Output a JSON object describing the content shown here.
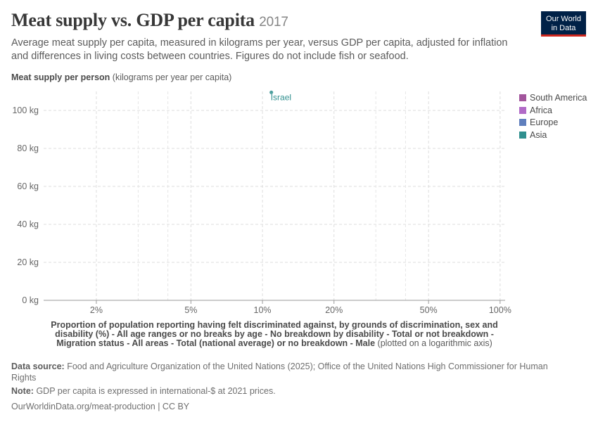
{
  "header": {
    "title": "Meat supply vs. GDP per capita",
    "year": "2017",
    "subtitle": "Average meat supply per capita, measured in kilograms per year, versus GDP per capita, adjusted for inflation and differences in living costs between countries. Figures do not include fish or seafood."
  },
  "logo": {
    "line1": "Our World",
    "line2": "in Data",
    "bg": "#002147",
    "accent": "#ce261e"
  },
  "chart_data": {
    "type": "scatter",
    "title": "Meat supply vs. GDP per capita",
    "ylabel_bold": "Meat supply per person",
    "ylabel_rest": "(kilograms per year per capita)",
    "xlabel_bold": "Proportion of population reporting having felt discriminated against, by grounds of discrimination, sex and disability (%) - All age ranges or no breaks by age - No breakdown by disability - Total or not breakdown - Migration status - All areas - Total (national average) or no breakdown - Male",
    "xlabel_rest": "(plotted on a logarithmic axis)",
    "x_scale": "log",
    "xlim": [
      1.2,
      105
    ],
    "ylim": [
      0,
      110
    ],
    "x_ticks": [
      {
        "value": 2,
        "label": "2%"
      },
      {
        "value": 5,
        "label": "5%"
      },
      {
        "value": 10,
        "label": "10%"
      },
      {
        "value": 20,
        "label": "20%"
      },
      {
        "value": 50,
        "label": "50%"
      },
      {
        "value": 100,
        "label": "100%"
      }
    ],
    "x_minor_ticks": [
      3,
      4,
      30,
      40
    ],
    "y_ticks": [
      {
        "value": 0,
        "label": "0 kg"
      },
      {
        "value": 20,
        "label": "20 kg"
      },
      {
        "value": 40,
        "label": "40 kg"
      },
      {
        "value": 60,
        "label": "60 kg"
      },
      {
        "value": 80,
        "label": "80 kg"
      },
      {
        "value": 100,
        "label": "100 kg"
      }
    ],
    "grid": true,
    "legend_position": "right",
    "legend": [
      {
        "name": "South America",
        "color": "#a2559c"
      },
      {
        "name": "Africa",
        "color": "#b16ac7"
      },
      {
        "name": "Europe",
        "color": "#5f7fbd"
      },
      {
        "name": "Asia",
        "color": "#2f8f8e"
      }
    ],
    "points": [
      {
        "label": "Israel",
        "x": 10.9,
        "y": 109.5,
        "region": "Asia",
        "color": "#2f8f8e"
      }
    ]
  },
  "footer": {
    "source_label": "Data source:",
    "source_text": "Food and Agriculture Organization of the United Nations (2025); Office of the United Nations High Commissioner for Human Rights",
    "note_label": "Note:",
    "note_text": "GDP per capita is expressed in international-$ at 2021 prices.",
    "url": "OurWorldinData.org/meat-production | CC BY"
  }
}
